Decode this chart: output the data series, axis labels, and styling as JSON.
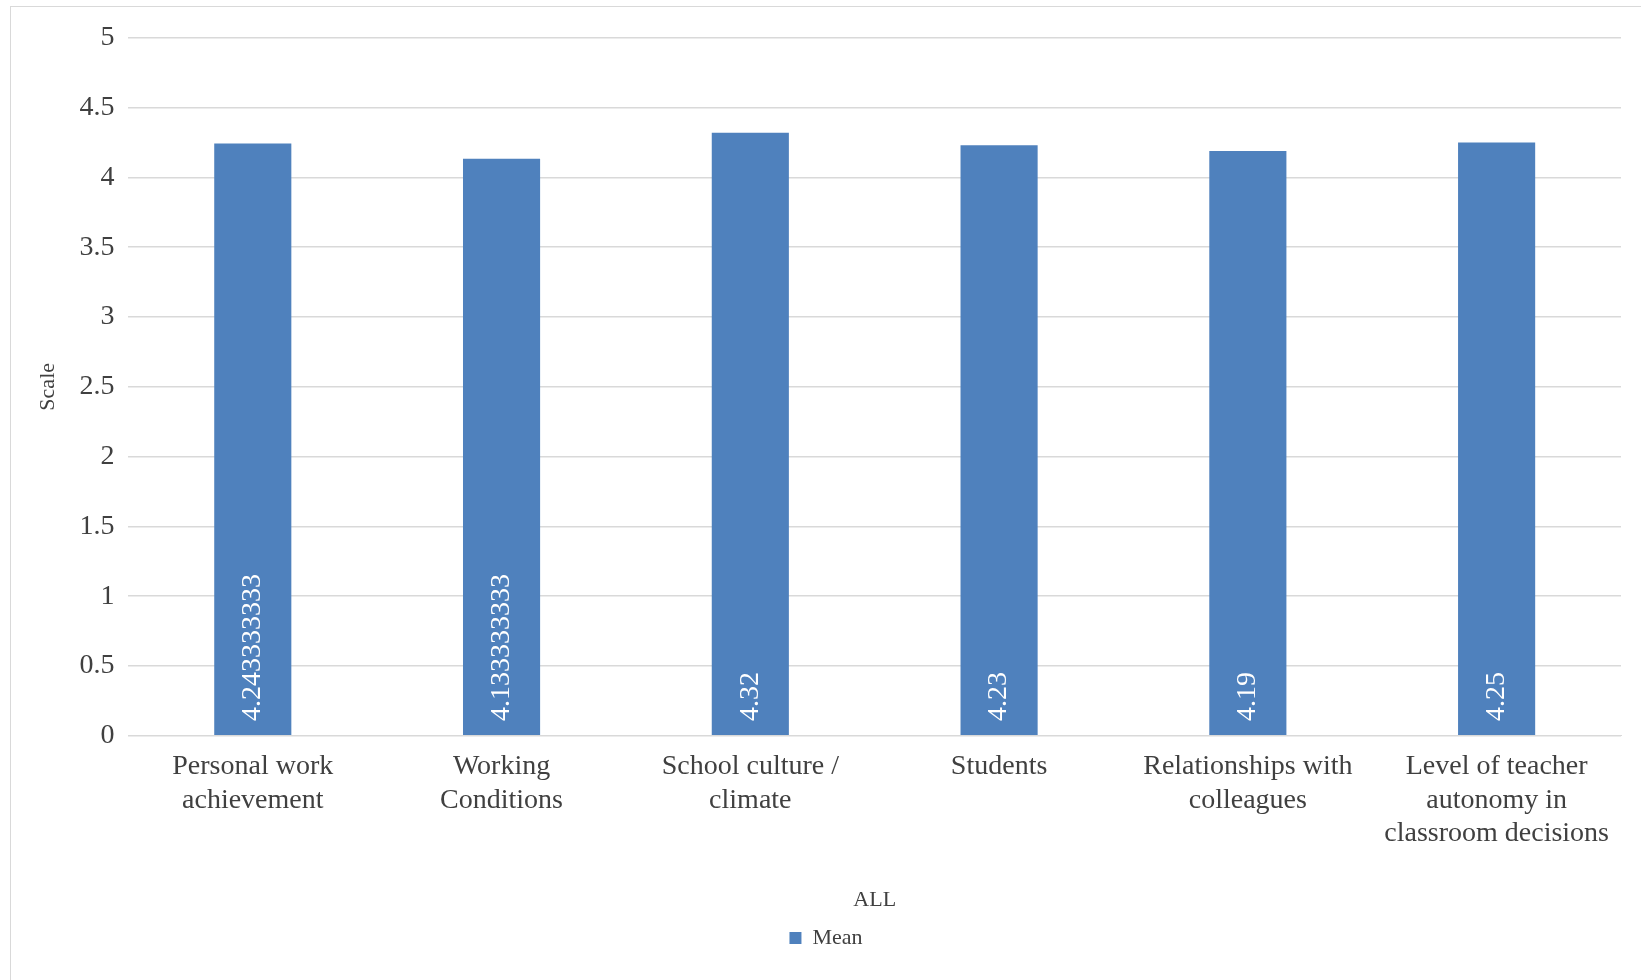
{
  "chart_data": {
    "type": "bar",
    "xlabel": "ALL",
    "ylabel": "Scale",
    "categories": [
      "Personal work achievement",
      "Working Conditions",
      "School culture / climate",
      "Students",
      "Relationships with colleagues",
      "Level of teacher autonomy in classroom decisions"
    ],
    "series": [
      {
        "name": "Mean",
        "color": "#4f81bd",
        "values": [
          4.243333333,
          4.133333333,
          4.32,
          4.23,
          4.19,
          4.25
        ]
      }
    ],
    "ylim": [
      0,
      5
    ],
    "yticks": [
      0,
      0.5,
      1,
      1.5,
      2,
      2.5,
      3,
      3.5,
      4,
      4.5,
      5
    ],
    "grid": "y",
    "legend": "bottom",
    "data_labels": true
  }
}
